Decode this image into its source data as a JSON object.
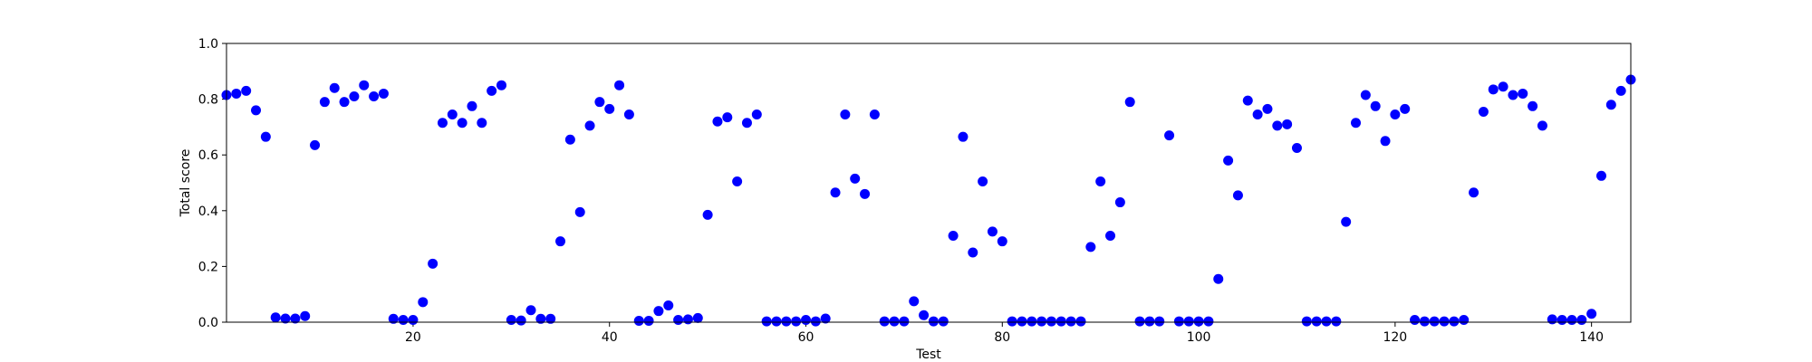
{
  "chart_data": {
    "type": "scatter",
    "title": "",
    "xlabel": "Test",
    "ylabel": "Total score",
    "xlim": [
      1,
      144
    ],
    "ylim": [
      0.0,
      1.0
    ],
    "xticks": [
      20,
      40,
      60,
      80,
      100,
      120,
      140
    ],
    "xtick_labels": [
      "20",
      "40",
      "60",
      "80",
      "100",
      "120",
      "140"
    ],
    "yticks": [
      0.0,
      0.2,
      0.4,
      0.6,
      0.8,
      1.0
    ],
    "ytick_labels": [
      "0.0",
      "0.2",
      "0.4",
      "0.6",
      "0.8",
      "1.0"
    ],
    "grid": false,
    "marker_color": "#0000ff",
    "series": [
      {
        "name": "Total score",
        "x": [
          1,
          2,
          3,
          4,
          5,
          6,
          7,
          8,
          9,
          10,
          11,
          12,
          13,
          14,
          15,
          16,
          17,
          18,
          19,
          20,
          21,
          22,
          23,
          24,
          25,
          26,
          27,
          28,
          29,
          30,
          31,
          32,
          33,
          34,
          35,
          36,
          37,
          38,
          39,
          40,
          41,
          42,
          43,
          44,
          45,
          46,
          47,
          48,
          49,
          50,
          51,
          52,
          53,
          54,
          55,
          56,
          57,
          58,
          59,
          60,
          61,
          62,
          63,
          64,
          65,
          66,
          67,
          68,
          69,
          70,
          71,
          72,
          73,
          74,
          75,
          76,
          77,
          78,
          79,
          80,
          81,
          82,
          83,
          84,
          85,
          86,
          87,
          88,
          89,
          90,
          91,
          92,
          93,
          94,
          95,
          96,
          97,
          98,
          99,
          100,
          101,
          102,
          103,
          104,
          105,
          106,
          107,
          108,
          109,
          110,
          111,
          112,
          113,
          114,
          115,
          116,
          117,
          118,
          119,
          120,
          121,
          122,
          123,
          124,
          125,
          126,
          127,
          128,
          129,
          130,
          131,
          132,
          133,
          134,
          135,
          136,
          137,
          138,
          139,
          140,
          141,
          142,
          143,
          144
        ],
        "y": [
          0.815,
          0.82,
          0.83,
          0.76,
          0.665,
          0.017,
          0.013,
          0.013,
          0.022,
          0.635,
          0.79,
          0.84,
          0.79,
          0.81,
          0.85,
          0.81,
          0.82,
          0.012,
          0.008,
          0.008,
          0.072,
          0.21,
          0.715,
          0.745,
          0.715,
          0.775,
          0.715,
          0.83,
          0.85,
          0.008,
          0.006,
          0.043,
          0.012,
          0.012,
          0.29,
          0.655,
          0.395,
          0.705,
          0.79,
          0.765,
          0.85,
          0.745,
          0.005,
          0.005,
          0.04,
          0.06,
          0.008,
          0.01,
          0.015,
          0.385,
          0.72,
          0.735,
          0.505,
          0.715,
          0.745,
          0.003,
          0.003,
          0.003,
          0.003,
          0.008,
          0.003,
          0.013,
          0.465,
          0.745,
          0.515,
          0.46,
          0.745,
          0.003,
          0.003,
          0.003,
          0.075,
          0.025,
          0.003,
          0.003,
          0.31,
          0.665,
          0.25,
          0.505,
          0.325,
          0.29,
          0.003,
          0.003,
          0.003,
          0.003,
          0.003,
          0.003,
          0.003,
          0.003,
          0.27,
          0.505,
          0.31,
          0.43,
          0.79,
          0.003,
          0.003,
          0.003,
          0.67,
          0.003,
          0.003,
          0.003,
          0.003,
          0.155,
          0.58,
          0.455,
          0.795,
          0.745,
          0.765,
          0.705,
          0.71,
          0.625,
          0.003,
          0.003,
          0.003,
          0.003,
          0.36,
          0.715,
          0.815,
          0.775,
          0.65,
          0.745,
          0.765,
          0.008,
          0.003,
          0.003,
          0.003,
          0.003,
          0.008,
          0.465,
          0.755,
          0.835,
          0.845,
          0.815,
          0.82,
          0.775,
          0.705,
          0.01,
          0.008,
          0.008,
          0.008,
          0.03,
          0.525,
          0.78,
          0.83,
          0.87
        ]
      }
    ]
  }
}
